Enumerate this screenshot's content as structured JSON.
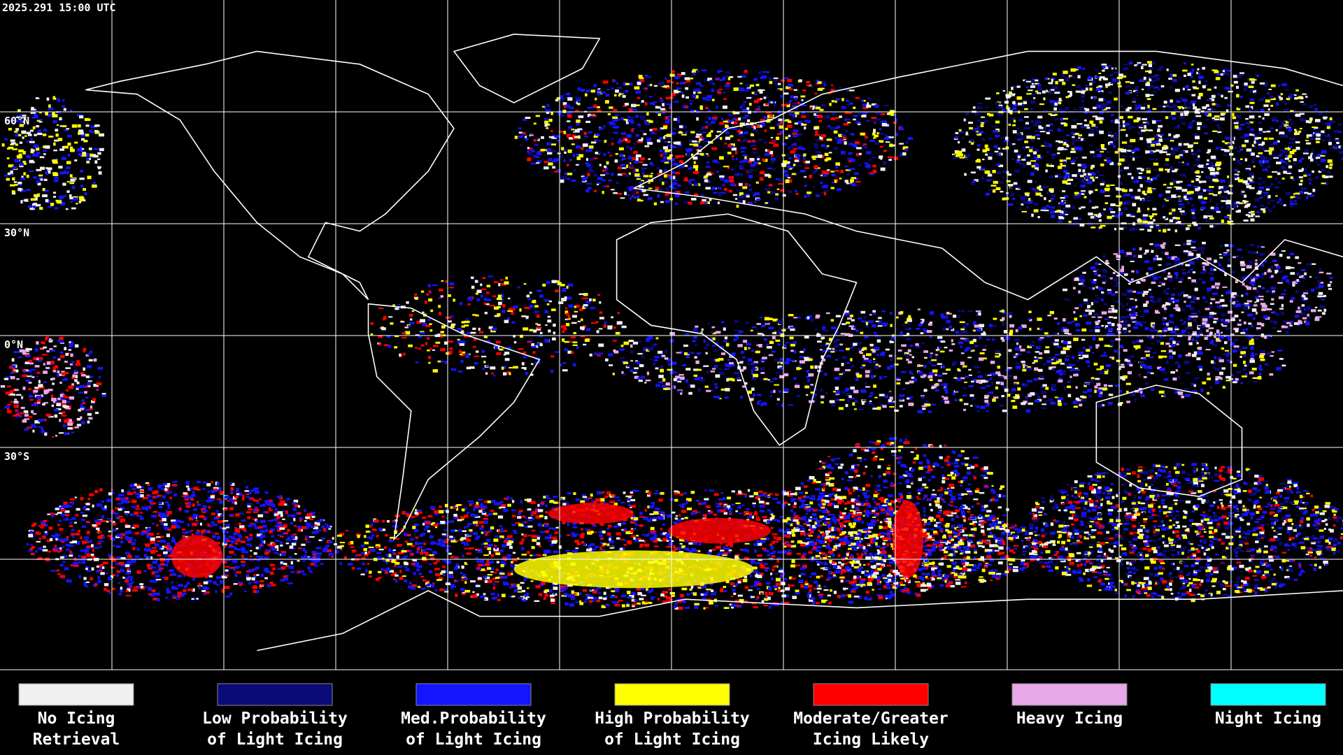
{
  "header": {
    "title": "2025.291 15:00 UTC"
  },
  "latitude_labels": [
    "60°N",
    "30°N",
    "0°N",
    "30°S"
  ],
  "legend": [
    {
      "lines": [
        "No Icing",
        "Retrieval"
      ],
      "color": "#f0f0f0"
    },
    {
      "lines": [
        "Low Probability",
        "of Light Icing"
      ],
      "color": "#0a0a78"
    },
    {
      "lines": [
        "Med.Probability",
        "of Light Icing"
      ],
      "color": "#1414ff"
    },
    {
      "lines": [
        "High Probability",
        "of Light Icing"
      ],
      "color": "#ffff00"
    },
    {
      "lines": [
        "Moderate/Greater",
        "Icing Likely"
      ],
      "color": "#ff0000"
    },
    {
      "lines": [
        "Heavy Icing"
      ],
      "color": "#e8a8e8"
    },
    {
      "lines": [
        "Night Icing"
      ],
      "color": "#00ffff"
    }
  ]
}
